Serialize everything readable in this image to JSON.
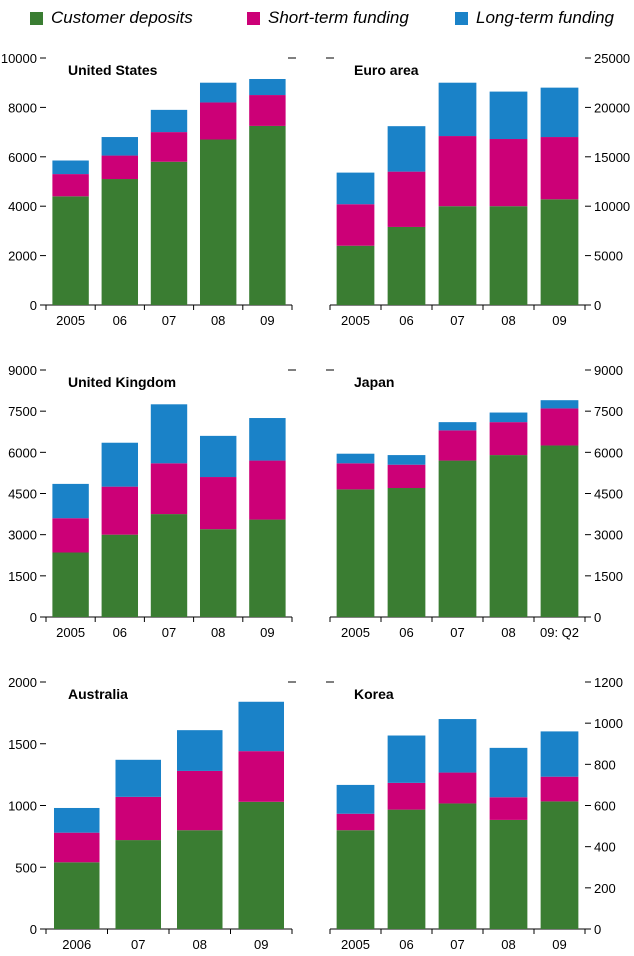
{
  "colors": {
    "customer_deposits": "#3a7d32",
    "short_term_funding": "#cc0077",
    "long_term_funding": "#1a82c8"
  },
  "legend": [
    {
      "label": "Customer deposits",
      "color_key": "customer_deposits"
    },
    {
      "label": "Short-term funding",
      "color_key": "short_term_funding"
    },
    {
      "label": "Long-term funding",
      "color_key": "long_term_funding"
    }
  ],
  "chart_data": [
    {
      "type": "bar",
      "stacked": true,
      "title": "United States",
      "axis_side": "left",
      "categories": [
        "2005",
        "06",
        "07",
        "08",
        "09"
      ],
      "ylim": [
        0,
        10000
      ],
      "yticks": [
        0,
        2000,
        4000,
        6000,
        8000,
        10000
      ],
      "series": [
        {
          "name": "Customer deposits",
          "values": [
            4400,
            5100,
            5800,
            6700,
            7250
          ]
        },
        {
          "name": "Short-term funding",
          "values": [
            900,
            950,
            1200,
            1500,
            1250
          ]
        },
        {
          "name": "Long-term funding",
          "values": [
            550,
            750,
            900,
            800,
            650
          ]
        }
      ]
    },
    {
      "type": "bar",
      "stacked": true,
      "title": "Euro area",
      "axis_side": "right",
      "categories": [
        "2005",
        "06",
        "07",
        "08",
        "09"
      ],
      "ylim": [
        0,
        25000
      ],
      "yticks": [
        0,
        5000,
        10000,
        15000,
        20000,
        25000
      ],
      "series": [
        {
          "name": "Customer deposits",
          "values": [
            6000,
            7900,
            10000,
            10000,
            10700
          ]
        },
        {
          "name": "Short-term funding",
          "values": [
            4200,
            5600,
            7100,
            6800,
            6300
          ]
        },
        {
          "name": "Long-term funding",
          "values": [
            3200,
            4600,
            5400,
            4800,
            5000
          ]
        }
      ]
    },
    {
      "type": "bar",
      "stacked": true,
      "title": "United Kingdom",
      "axis_side": "left",
      "categories": [
        "2005",
        "06",
        "07",
        "08",
        "09"
      ],
      "ylim": [
        0,
        9000
      ],
      "yticks": [
        0,
        1500,
        3000,
        4500,
        6000,
        7500,
        9000
      ],
      "series": [
        {
          "name": "Customer deposits",
          "values": [
            2350,
            3000,
            3750,
            3200,
            3550
          ]
        },
        {
          "name": "Short-term funding",
          "values": [
            1250,
            1750,
            1850,
            1900,
            2150
          ]
        },
        {
          "name": "Long-term funding",
          "values": [
            1250,
            1600,
            2150,
            1500,
            1550
          ]
        }
      ]
    },
    {
      "type": "bar",
      "stacked": true,
      "title": "Japan",
      "axis_side": "right",
      "categories": [
        "2005",
        "06",
        "07",
        "08",
        "09: Q2"
      ],
      "ylim": [
        0,
        9000
      ],
      "yticks": [
        0,
        1500,
        3000,
        4500,
        6000,
        7500,
        9000
      ],
      "series": [
        {
          "name": "Customer deposits",
          "values": [
            4650,
            4700,
            5700,
            5900,
            6250
          ]
        },
        {
          "name": "Short-term funding",
          "values": [
            950,
            850,
            1100,
            1200,
            1350
          ]
        },
        {
          "name": "Long-term funding",
          "values": [
            350,
            350,
            300,
            350,
            300
          ]
        }
      ]
    },
    {
      "type": "bar",
      "stacked": true,
      "title": "Australia",
      "axis_side": "left",
      "categories": [
        "2006",
        "07",
        "08",
        "09"
      ],
      "ylim": [
        0,
        2000
      ],
      "yticks": [
        0,
        500,
        1000,
        1500,
        2000
      ],
      "series": [
        {
          "name": "Customer deposits",
          "values": [
            540,
            720,
            800,
            1030
          ]
        },
        {
          "name": "Short-term funding",
          "values": [
            240,
            350,
            480,
            410
          ]
        },
        {
          "name": "Long-term funding",
          "values": [
            200,
            300,
            330,
            400
          ]
        }
      ]
    },
    {
      "type": "bar",
      "stacked": true,
      "title": "Korea",
      "axis_side": "right",
      "categories": [
        "2005",
        "06",
        "07",
        "08",
        "09"
      ],
      "ylim": [
        0,
        1200
      ],
      "yticks": [
        0,
        200,
        400,
        600,
        800,
        1000,
        1200
      ],
      "series": [
        {
          "name": "Customer deposits",
          "values": [
            480,
            580,
            610,
            530,
            620
          ]
        },
        {
          "name": "Short-term funding",
          "values": [
            80,
            130,
            150,
            110,
            120
          ]
        },
        {
          "name": "Long-term funding",
          "values": [
            140,
            230,
            260,
            240,
            220
          ]
        }
      ]
    }
  ]
}
